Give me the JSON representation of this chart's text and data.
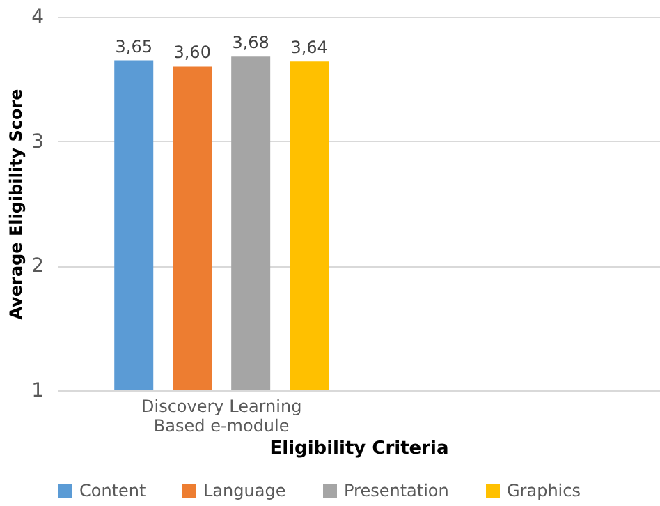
{
  "chart_data": {
    "type": "bar",
    "xlabel": "Eligibility Criteria",
    "ylabel": "Average Eligibility Score",
    "categories": [
      "Discovery Learning Based e-module",
      null
    ],
    "series": [
      {
        "name": "Content",
        "color": "#5b9bd5",
        "values": [
          3.65,
          null
        ],
        "value_labels": [
          "3,65",
          null
        ]
      },
      {
        "name": "Language",
        "color": "#ed7d31",
        "values": [
          3.6,
          null
        ],
        "value_labels": [
          "3,60",
          null
        ]
      },
      {
        "name": "Presentation",
        "color": "#a5a5a5",
        "values": [
          3.68,
          null
        ],
        "value_labels": [
          "3,68",
          null
        ]
      },
      {
        "name": "Graphics",
        "color": "#ffc000",
        "values": [
          3.64,
          null
        ],
        "value_labels": [
          "3,64",
          null
        ]
      }
    ],
    "ylim": [
      1,
      4
    ],
    "yticks": [
      1,
      2,
      3,
      4
    ],
    "grid": "y",
    "legend": "bottom"
  }
}
